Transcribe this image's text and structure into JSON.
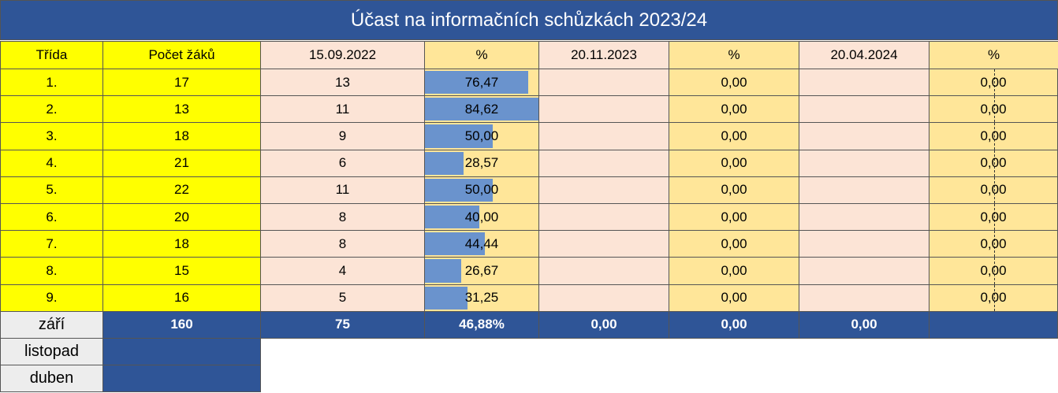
{
  "title": "Účast na informačních schůzkách 2023/24",
  "header": [
    "Třída",
    "Počet žáků",
    "15.09.2022",
    "%",
    "20.11.2023",
    "%",
    "20.04.2024",
    "%"
  ],
  "rows": [
    {
      "class": "1.",
      "count": "17",
      "present_1": "13",
      "pct_1": {
        "value": 76.47,
        "label": "76,47"
      },
      "pct_2": "0,00",
      "pct_3": "0,00"
    },
    {
      "class": "2.",
      "count": "13",
      "present_1": "11",
      "pct_1": {
        "value": 84.62,
        "label": "84,62"
      },
      "pct_2": "0,00",
      "pct_3": "0,00"
    },
    {
      "class": "3.",
      "count": "18",
      "present_1": "9",
      "pct_1": {
        "value": 50.0,
        "label": "50,00"
      },
      "pct_2": "0,00",
      "pct_3": "0,00"
    },
    {
      "class": "4.",
      "count": "21",
      "present_1": "6",
      "pct_1": {
        "value": 28.57,
        "label": "28,57"
      },
      "pct_2": "0,00",
      "pct_3": "0,00"
    },
    {
      "class": "5.",
      "count": "22",
      "present_1": "11",
      "pct_1": {
        "value": 50.0,
        "label": "50,00"
      },
      "pct_2": "0,00",
      "pct_3": "0,00"
    },
    {
      "class": "6.",
      "count": "20",
      "present_1": "8",
      "pct_1": {
        "value": 40.0,
        "label": "40,00"
      },
      "pct_2": "0,00",
      "pct_3": "0,00"
    },
    {
      "class": "7.",
      "count": "18",
      "present_1": "8",
      "pct_1": {
        "value": 44.44,
        "label": "44,44"
      },
      "pct_2": "0,00",
      "pct_3": "0,00"
    },
    {
      "class": "8.",
      "count": "15",
      "present_1": "4",
      "pct_1": {
        "value": 26.67,
        "label": "26,67"
      },
      "pct_2": "0,00",
      "pct_3": "0,00"
    },
    {
      "class": "9.",
      "count": "16",
      "present_1": "5",
      "pct_1": {
        "value": 31.25,
        "label": "31,25"
      },
      "pct_2": "0,00",
      "pct_3": "0,00"
    }
  ],
  "summary": {
    "label": "září",
    "cells": [
      "160",
      "75",
      "46,88%",
      "0,00",
      "0,00",
      "0,00"
    ]
  },
  "months": [
    "listopad",
    "duben"
  ]
}
